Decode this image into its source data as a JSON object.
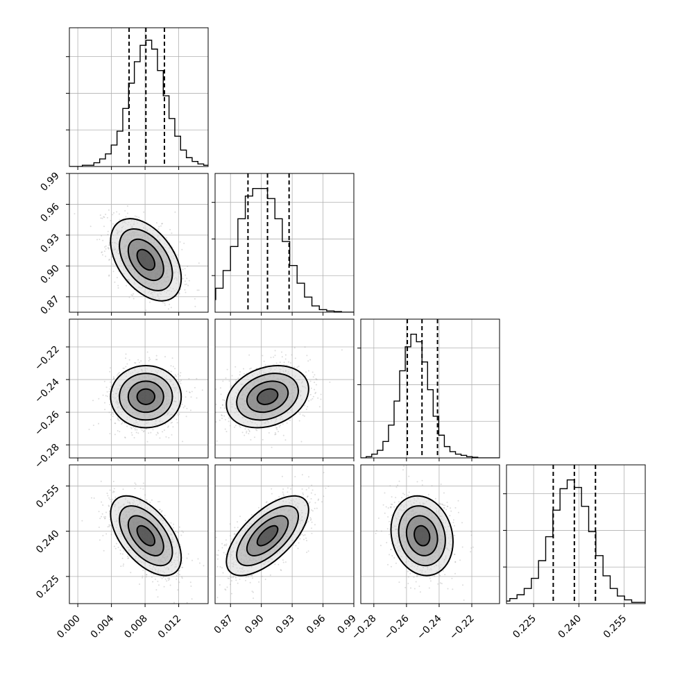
{
  "chart_data": {
    "type": "corner",
    "colors": {
      "contour": "#000000",
      "grid": "#b0b0b0",
      "points": "#9a9a9a"
    },
    "parameters": [
      {
        "range": [
          -0.001,
          0.0155
        ],
        "ticks": [
          0.0,
          0.004,
          0.008,
          0.012
        ],
        "tick_labels": [
          "0.000",
          "0.004",
          "0.008",
          "0.012"
        ],
        "quantiles": [
          0.0061,
          0.0081,
          0.0103
        ],
        "mean": 0.0081,
        "sd": 0.0021,
        "hist_counts": [
          0.01,
          0.01,
          0.03,
          0.06,
          0.1,
          0.17,
          0.28,
          0.46,
          0.66,
          0.83,
          0.96,
          1.0,
          0.93,
          0.76,
          0.56,
          0.38,
          0.24,
          0.13,
          0.07,
          0.04,
          0.02,
          0.01
        ]
      },
      {
        "range": [
          0.855,
          0.99
        ],
        "ticks": [
          0.87,
          0.9,
          0.93,
          0.96,
          0.99
        ],
        "tick_labels": [
          "0.87",
          "0.90",
          "0.93",
          "0.96",
          "0.99"
        ],
        "quantiles": [
          0.887,
          0.906,
          0.927
        ],
        "mean": 0.906,
        "sd": 0.02,
        "hist_counts": [
          0.03,
          0.06,
          0.1,
          0.19,
          0.33,
          0.52,
          0.74,
          0.92,
          0.98,
          0.98,
          0.9,
          0.74,
          0.56,
          0.37,
          0.23,
          0.12,
          0.05,
          0.02,
          0.01,
          0.005
        ]
      },
      {
        "range": [
          -0.288,
          -0.203
        ],
        "ticks": [
          -0.28,
          -0.26,
          -0.24,
          -0.22
        ],
        "tick_labels": [
          "−0.28",
          "−0.26",
          "−0.24",
          "−0.22"
        ],
        "quantiles": [
          -0.2595,
          -0.2505,
          -0.241
        ],
        "mean": -0.2505,
        "sd": 0.0095,
        "hist_counts": [
          0.01,
          0.03,
          0.06,
          0.13,
          0.26,
          0.45,
          0.69,
          0.88,
          0.98,
          0.92,
          0.76,
          0.54,
          0.33,
          0.18,
          0.09,
          0.05,
          0.03,
          0.02,
          0.01,
          0.005
        ]
      },
      {
        "range": [
          0.216,
          0.262
        ],
        "ticks": [
          0.225,
          0.24,
          0.255
        ],
        "tick_labels": [
          "0.225",
          "0.240",
          "0.255"
        ],
        "quantiles": [
          0.2315,
          0.2385,
          0.2455
        ],
        "mean": 0.2385,
        "sd": 0.0066,
        "hist_counts": [
          0.02,
          0.04,
          0.07,
          0.12,
          0.2,
          0.34,
          0.53,
          0.74,
          0.91,
          0.98,
          0.92,
          0.77,
          0.57,
          0.38,
          0.22,
          0.12,
          0.06,
          0.03,
          0.01,
          0.01
        ]
      }
    ],
    "correlations": {
      "1_0": -0.45,
      "2_0": 0.0,
      "2_1": 0.25,
      "3_0": -0.55,
      "3_1": 0.65,
      "3_2": -0.15
    },
    "contour_levels_sigma": [
      0.5,
      1.0,
      1.5,
      2.0
    ],
    "histogram": true,
    "grid": true
  }
}
